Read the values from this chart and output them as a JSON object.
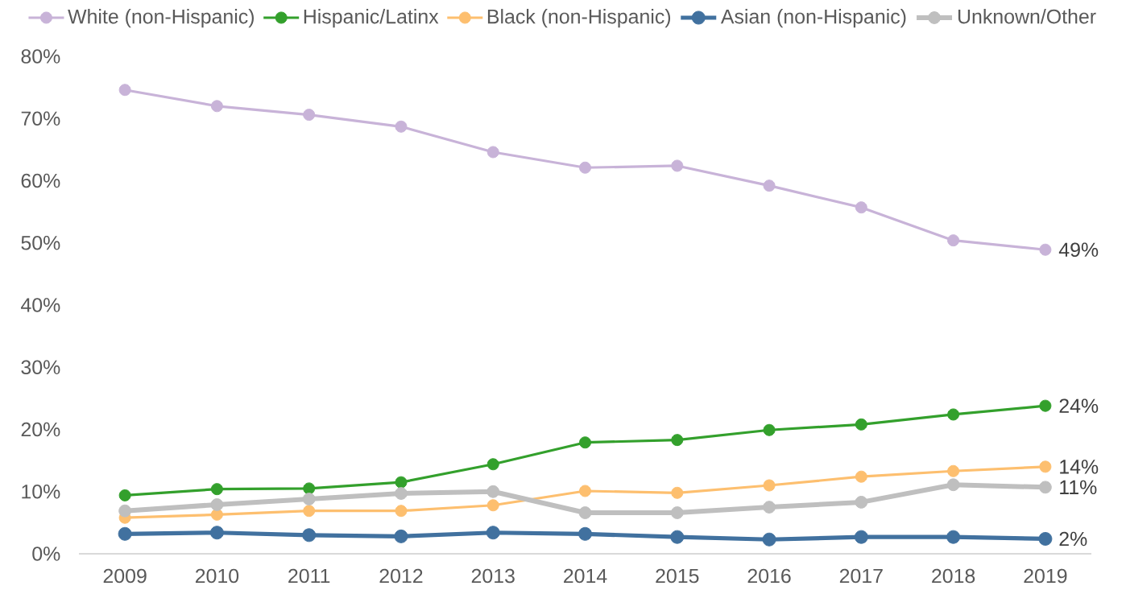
{
  "chart_data": {
    "type": "line",
    "categories": [
      "2009",
      "2010",
      "2011",
      "2012",
      "2013",
      "2014",
      "2015",
      "2016",
      "2017",
      "2018",
      "2019"
    ],
    "series": [
      {
        "name": "White (non-Hispanic)",
        "color": "#c8b3d8",
        "values": [
          74.6,
          72.0,
          70.6,
          68.7,
          64.6,
          62.1,
          62.4,
          59.2,
          55.7,
          50.4,
          48.9
        ],
        "value_labels": [
          null,
          null,
          null,
          null,
          null,
          null,
          null,
          null,
          null,
          null,
          "49%"
        ]
      },
      {
        "name": "Hispanic/Latinx",
        "color": "#33a02c",
        "values": [
          9.4,
          10.4,
          10.5,
          11.5,
          14.4,
          17.9,
          18.3,
          19.9,
          20.8,
          22.4,
          23.8
        ],
        "value_labels": [
          null,
          null,
          null,
          null,
          null,
          null,
          null,
          null,
          null,
          null,
          "24%"
        ]
      },
      {
        "name": "Black (non-Hispanic)",
        "color": "#fdbf6f",
        "values": [
          5.8,
          6.3,
          6.9,
          6.9,
          7.8,
          10.1,
          9.8,
          11.0,
          12.4,
          13.3,
          14.0
        ],
        "value_labels": [
          null,
          null,
          null,
          null,
          null,
          null,
          null,
          null,
          null,
          null,
          "14%"
        ]
      },
      {
        "name": "Asian (non-Hispanic)",
        "color": "#41719f",
        "values": [
          3.2,
          3.4,
          3.0,
          2.8,
          3.4,
          3.2,
          2.7,
          2.3,
          2.7,
          2.7,
          2.4
        ],
        "value_labels": [
          null,
          null,
          null,
          null,
          null,
          null,
          null,
          null,
          null,
          null,
          "2%"
        ]
      },
      {
        "name": "Unknown/Other",
        "color": "#bfbfbf",
        "values": [
          6.9,
          7.9,
          8.8,
          9.7,
          10.0,
          6.6,
          6.6,
          7.5,
          8.3,
          11.1,
          10.7
        ],
        "value_labels": [
          null,
          null,
          null,
          null,
          null,
          null,
          null,
          null,
          null,
          null,
          "11%"
        ]
      }
    ],
    "ylim": [
      0,
      80
    ],
    "yticks": [
      {
        "value": 0,
        "label": "0%"
      },
      {
        "value": 10,
        "label": "10%"
      },
      {
        "value": 20,
        "label": "20%"
      },
      {
        "value": 30,
        "label": "30%"
      },
      {
        "value": 40,
        "label": "40%"
      },
      {
        "value": 50,
        "label": "50%"
      },
      {
        "value": 60,
        "label": "60%"
      },
      {
        "value": 70,
        "label": "70%"
      },
      {
        "value": 80,
        "label": "80%"
      }
    ],
    "legend": "top",
    "marker": "circle",
    "line_style": "solid"
  }
}
